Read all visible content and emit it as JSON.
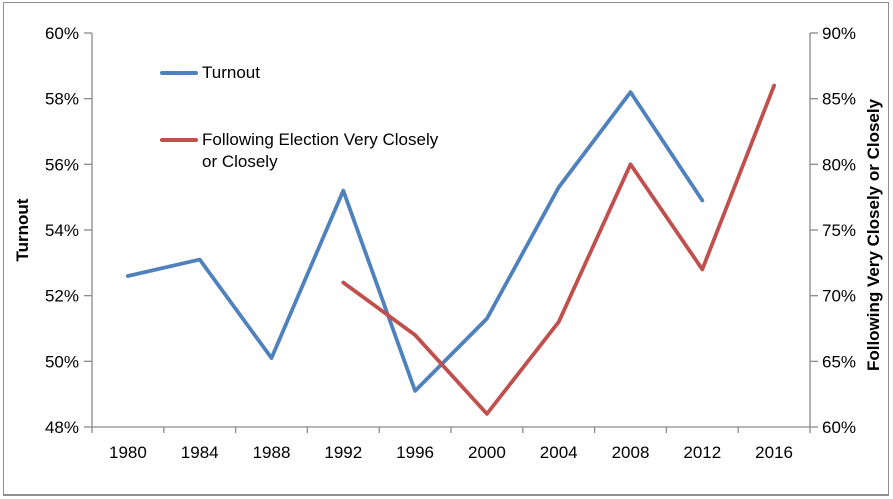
{
  "frame": {
    "border_color": "#8f8f8f"
  },
  "legend": {
    "position": "inside-top-left",
    "items": [
      {
        "label": "Turnout",
        "color": "#4F81BD"
      },
      {
        "label": "Following Election Very Closely or Closely",
        "label_line1": "Following Election Very Closely",
        "label_line2": "or Closely",
        "color": "#C0504D"
      }
    ]
  },
  "axes": {
    "left_title": "Turnout",
    "right_title": "Following Very Closely or Closely"
  },
  "chart_data": {
    "type": "line",
    "title": "",
    "categories": [
      "1980",
      "1984",
      "1988",
      "1992",
      "1996",
      "2000",
      "2004",
      "2008",
      "2012",
      "2016"
    ],
    "series": [
      {
        "name": "Turnout",
        "yaxis": "left",
        "color": "#4F81BD",
        "values": [
          52.6,
          53.1,
          50.1,
          55.2,
          49.1,
          51.3,
          55.3,
          58.2,
          54.9,
          null
        ]
      },
      {
        "name": "Following Election Very Closely or Closely",
        "yaxis": "right",
        "color": "#C0504D",
        "values": [
          null,
          null,
          null,
          71,
          67,
          61,
          68,
          80,
          72,
          86
        ]
      }
    ],
    "left_axis": {
      "title": "Turnout",
      "min": 48,
      "max": 60,
      "step": 2,
      "unit": "%"
    },
    "right_axis": {
      "title": "Following Very Closely or Closely",
      "min": 60,
      "max": 90,
      "step": 5,
      "unit": "%"
    },
    "x_axis": {
      "labels": [
        "1980",
        "1984",
        "1988",
        "1992",
        "1996",
        "2000",
        "2004",
        "2008",
        "2012",
        "2016"
      ]
    },
    "grid": false,
    "legend_position": "inside-top-left",
    "axis_color": "#8a8a8a",
    "text_color": "#000000",
    "line_width": 3.8
  }
}
